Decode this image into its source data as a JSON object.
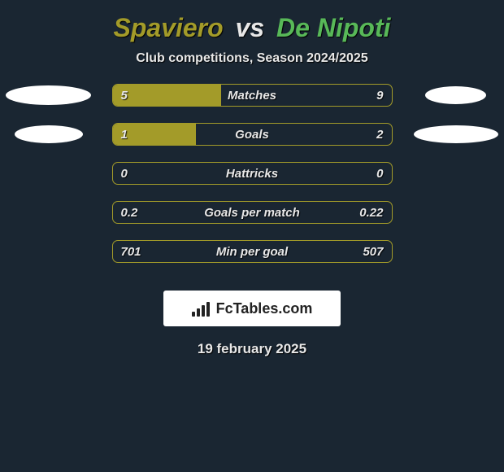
{
  "title": {
    "player1": "Spaviero",
    "vs": "vs",
    "player2": "De Nipoti",
    "color_p1": "#a39b29",
    "color_p2": "#58b858",
    "color_vs": "#e8e8e8",
    "fontsize": 32
  },
  "subtitle": "Club competitions, Season 2024/2025",
  "background_color": "#1a2632",
  "bar_style": {
    "track_width": 345,
    "track_height": 28,
    "track_border_color": "#a39b29",
    "fill_color": "#a39b29",
    "border_radius": 7,
    "value_fontsize": 15,
    "value_color": "#e8e8e8"
  },
  "ellipse_color": "#ffffff",
  "stats": [
    {
      "label": "Matches",
      "left_value": "5",
      "right_value": "9",
      "fill_pct": 39,
      "left_ellipse_w": 105,
      "left_ellipse_h": 24,
      "right_ellipse_w": 75,
      "right_ellipse_h": 22
    },
    {
      "label": "Goals",
      "left_value": "1",
      "right_value": "2",
      "fill_pct": 30,
      "left_ellipse_w": 84,
      "left_ellipse_h": 22,
      "right_ellipse_w": 104,
      "right_ellipse_h": 22
    },
    {
      "label": "Hattricks",
      "left_value": "0",
      "right_value": "0",
      "fill_pct": 0,
      "left_ellipse_w": 0,
      "left_ellipse_h": 0,
      "right_ellipse_w": 0,
      "right_ellipse_h": 0
    },
    {
      "label": "Goals per match",
      "left_value": "0.2",
      "right_value": "0.22",
      "fill_pct": 0,
      "left_ellipse_w": 0,
      "left_ellipse_h": 0,
      "right_ellipse_w": 0,
      "right_ellipse_h": 0
    },
    {
      "label": "Min per goal",
      "left_value": "701",
      "right_value": "507",
      "fill_pct": 0,
      "left_ellipse_w": 0,
      "left_ellipse_h": 0,
      "right_ellipse_w": 0,
      "right_ellipse_h": 0
    }
  ],
  "brand": {
    "text": "FcTables.com",
    "bg_color": "#ffffff",
    "text_color": "#222222",
    "fontsize": 18
  },
  "date": "19 february 2025"
}
